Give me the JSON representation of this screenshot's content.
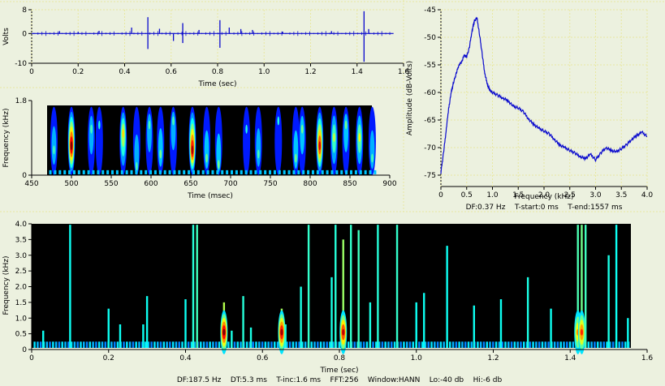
{
  "panels": {
    "waveform": {
      "ylabel": "Volts",
      "xlabel": "Time (sec)",
      "ytick_labels": [
        "8",
        "0",
        "-10"
      ],
      "xtick_labels": [
        "0",
        "0.2",
        "0.4",
        "0.6",
        "0.8",
        "1.0",
        "1.2",
        "1.4",
        "1.6"
      ]
    },
    "zoom_spectrogram": {
      "ylabel": "Frequency (kHz)",
      "xlabel": "Time (msec)",
      "ytick_labels": [
        "1.8",
        "0"
      ],
      "xtick_labels": [
        "450",
        "500",
        "550",
        "600",
        "650",
        "700",
        "750",
        "800",
        "850",
        "900"
      ]
    },
    "spectrum": {
      "ylabel": "Amplitude (dB-Volts)",
      "xlabel": "Frequency (kHz)",
      "ytick_labels": [
        "-45",
        "-50",
        "-55",
        "-60",
        "-65",
        "-70",
        "-75"
      ],
      "xtick_labels": [
        "0",
        "0.5",
        "1.0",
        "1.5",
        "2.0",
        "2.5",
        "3.0",
        "3.5",
        "4.0"
      ],
      "footer": "DF:0.37 Hz    T-start:0 ms    T-end:1557 ms"
    },
    "spectrogram": {
      "ylabel": "Frequency (kHz)",
      "xlabel": "Time (sec)",
      "ytick_labels": [
        "4.0",
        "3.5",
        "3.0",
        "2.5",
        "2.0",
        "1.5",
        "1.0",
        "0.5",
        "0"
      ],
      "xtick_labels": [
        "0",
        "0.2",
        "0.4",
        "0.6",
        "0.8",
        "1.0",
        "1.2",
        "1.4",
        "1.6"
      ],
      "footer": "DF:187.5 Hz    DT:5.3 ms    T-inc:1.6 ms    FFT:256    Window:HANN    Lo:-40 db    Hi:-6 db"
    }
  },
  "colors": {
    "background": "#ECF1DF",
    "trace": "#0A0ACD",
    "spectrogram_bg": "#000000",
    "separator": "#E8E8A0"
  },
  "chart_data": [
    {
      "type": "line",
      "title": "",
      "xlabel": "Time (sec)",
      "ylabel": "Volts",
      "xlim": [
        0,
        1.6
      ],
      "ylim": [
        -10,
        8
      ],
      "baseline": 0,
      "transients": [
        {
          "x": 0.12,
          "y": 0.8
        },
        {
          "x": 0.2,
          "y": 0.6
        },
        {
          "x": 0.29,
          "y": 0.9
        },
        {
          "x": 0.43,
          "y": 2.0
        },
        {
          "x": 0.5,
          "y": 5.5
        },
        {
          "x": 0.5,
          "y": -5.2
        },
        {
          "x": 0.55,
          "y": 1.6
        },
        {
          "x": 0.61,
          "y": -2.5
        },
        {
          "x": 0.65,
          "y": 3.5
        },
        {
          "x": 0.65,
          "y": -3.2
        },
        {
          "x": 0.72,
          "y": 1.2
        },
        {
          "x": 0.81,
          "y": 4.5
        },
        {
          "x": 0.81,
          "y": -4.8
        },
        {
          "x": 0.85,
          "y": 2.0
        },
        {
          "x": 0.9,
          "y": 1.5
        },
        {
          "x": 0.95,
          "y": 1.2
        },
        {
          "x": 1.08,
          "y": 0.6
        },
        {
          "x": 1.29,
          "y": 0.8
        },
        {
          "x": 1.43,
          "y": 7.5
        },
        {
          "x": 1.43,
          "y": -9.5
        },
        {
          "x": 1.45,
          "y": 1.5
        }
      ]
    },
    {
      "type": "heatmap",
      "title": "",
      "xlabel": "Time (msec)",
      "ylabel": "Frequency (kHz)",
      "xlim": [
        450,
        900
      ],
      "ylim": [
        0,
        1.8
      ],
      "data_range_ms": [
        470,
        885
      ],
      "events": [
        {
          "t": 478,
          "fpeak": 0.6,
          "intensity": 0.35
        },
        {
          "t": 500,
          "fpeak": 0.7,
          "intensity": 1.0
        },
        {
          "t": 525,
          "fpeak": 1.1,
          "intensity": 0.35
        },
        {
          "t": 535,
          "fpeak": 1.2,
          "intensity": 0.3
        },
        {
          "t": 565,
          "fpeak": 1.0,
          "intensity": 0.6
        },
        {
          "t": 582,
          "fpeak": 0.2,
          "intensity": 0.35
        },
        {
          "t": 598,
          "fpeak": 1.2,
          "intensity": 0.35
        },
        {
          "t": 612,
          "fpeak": 0.5,
          "intensity": 0.4
        },
        {
          "t": 628,
          "fpeak": 1.3,
          "intensity": 0.35
        },
        {
          "t": 652,
          "fpeak": 0.6,
          "intensity": 0.95
        },
        {
          "t": 670,
          "fpeak": 0.4,
          "intensity": 0.4
        },
        {
          "t": 685,
          "fpeak": 0.25,
          "intensity": 0.4
        },
        {
          "t": 720,
          "fpeak": 1.1,
          "intensity": 0.3
        },
        {
          "t": 735,
          "fpeak": 0.5,
          "intensity": 0.35
        },
        {
          "t": 760,
          "fpeak": 1.3,
          "intensity": 0.3
        },
        {
          "t": 782,
          "fpeak": 0.4,
          "intensity": 0.4
        },
        {
          "t": 790,
          "fpeak": 1.1,
          "intensity": 0.4
        },
        {
          "t": 812,
          "fpeak": 0.7,
          "intensity": 0.9
        },
        {
          "t": 830,
          "fpeak": 0.9,
          "intensity": 0.5
        },
        {
          "t": 845,
          "fpeak": 1.2,
          "intensity": 0.4
        },
        {
          "t": 862,
          "fpeak": 0.9,
          "intensity": 0.55
        },
        {
          "t": 878,
          "fpeak": 0.4,
          "intensity": 0.35
        }
      ]
    },
    {
      "type": "line",
      "title": "",
      "xlabel": "Frequency (kHz)",
      "ylabel": "Amplitude (dB-Volts)",
      "xlim": [
        0,
        4.0
      ],
      "ylim": [
        -75,
        -45
      ],
      "x": [
        0,
        0.05,
        0.1,
        0.15,
        0.2,
        0.25,
        0.3,
        0.35,
        0.4,
        0.45,
        0.5,
        0.55,
        0.6,
        0.65,
        0.7,
        0.75,
        0.8,
        0.85,
        0.9,
        0.95,
        1.0,
        1.1,
        1.2,
        1.3,
        1.4,
        1.5,
        1.6,
        1.7,
        1.8,
        1.9,
        2.0,
        2.1,
        2.2,
        2.3,
        2.4,
        2.5,
        2.6,
        2.7,
        2.8,
        2.9,
        3.0,
        3.1,
        3.2,
        3.3,
        3.4,
        3.5,
        3.6,
        3.7,
        3.8,
        3.9,
        4.0
      ],
      "y": [
        -74.5,
        -71,
        -67,
        -63,
        -60,
        -58,
        -56.5,
        -55,
        -54.5,
        -53.3,
        -53.5,
        -52,
        -49,
        -47,
        -46.5,
        -49.5,
        -53,
        -56.5,
        -58.5,
        -59.6,
        -60,
        -60.5,
        -61,
        -61.5,
        -62.5,
        -62.8,
        -63.5,
        -64.8,
        -65.8,
        -66.5,
        -67,
        -67.5,
        -68.5,
        -69.5,
        -70,
        -70.5,
        -71,
        -71.6,
        -72,
        -71.2,
        -72.2,
        -71,
        -70,
        -70.5,
        -70.8,
        -70.2,
        -69.5,
        -68.5,
        -67.8,
        -67.2,
        -68
      ]
    },
    {
      "type": "heatmap",
      "title": "",
      "xlabel": "Time (sec)",
      "ylabel": "Frequency (kHz)",
      "xlim": [
        0,
        1.6
      ],
      "ylim": [
        0,
        4.0
      ],
      "data_range_s": [
        0,
        1.557
      ],
      "events": [
        {
          "t": 0.03,
          "fmax": 0.6,
          "intensity": 0.35
        },
        {
          "t": 0.1,
          "fmax": 4.0,
          "intensity": 0.35
        },
        {
          "t": 0.2,
          "fmax": 1.3,
          "intensity": 0.35
        },
        {
          "t": 0.23,
          "fmax": 0.8,
          "intensity": 0.35
        },
        {
          "t": 0.29,
          "fmax": 0.8,
          "intensity": 0.35
        },
        {
          "t": 0.3,
          "fmax": 1.7,
          "intensity": 0.35
        },
        {
          "t": 0.4,
          "fmax": 1.6,
          "intensity": 0.35
        },
        {
          "t": 0.42,
          "fmax": 4.0,
          "intensity": 0.45
        },
        {
          "t": 0.43,
          "fmax": 4.0,
          "intensity": 0.55
        },
        {
          "t": 0.5,
          "fmax": 1.5,
          "intensity": 1.0
        },
        {
          "t": 0.52,
          "fmax": 0.6,
          "intensity": 0.4
        },
        {
          "t": 0.55,
          "fmax": 1.7,
          "intensity": 0.45
        },
        {
          "t": 0.57,
          "fmax": 0.7,
          "intensity": 0.4
        },
        {
          "t": 0.65,
          "fmax": 1.3,
          "intensity": 0.95
        },
        {
          "t": 0.66,
          "fmax": 0.8,
          "intensity": 0.4
        },
        {
          "t": 0.7,
          "fmax": 2.0,
          "intensity": 0.4
        },
        {
          "t": 0.72,
          "fmax": 4.0,
          "intensity": 0.5
        },
        {
          "t": 0.78,
          "fmax": 2.3,
          "intensity": 0.4
        },
        {
          "t": 0.79,
          "fmax": 4.0,
          "intensity": 0.45
        },
        {
          "t": 0.81,
          "fmax": 3.5,
          "intensity": 0.9
        },
        {
          "t": 0.83,
          "fmax": 4.0,
          "intensity": 0.5
        },
        {
          "t": 0.85,
          "fmax": 3.8,
          "intensity": 0.55
        },
        {
          "t": 0.88,
          "fmax": 1.5,
          "intensity": 0.4
        },
        {
          "t": 0.9,
          "fmax": 4.0,
          "intensity": 0.45
        },
        {
          "t": 0.95,
          "fmax": 4.0,
          "intensity": 0.5
        },
        {
          "t": 1.0,
          "fmax": 1.5,
          "intensity": 0.35
        },
        {
          "t": 1.02,
          "fmax": 1.8,
          "intensity": 0.35
        },
        {
          "t": 1.08,
          "fmax": 3.3,
          "intensity": 0.35
        },
        {
          "t": 1.15,
          "fmax": 1.4,
          "intensity": 0.35
        },
        {
          "t": 1.22,
          "fmax": 1.6,
          "intensity": 0.35
        },
        {
          "t": 1.29,
          "fmax": 2.3,
          "intensity": 0.4
        },
        {
          "t": 1.35,
          "fmax": 1.3,
          "intensity": 0.35
        },
        {
          "t": 1.42,
          "fmax": 4.0,
          "intensity": 0.6
        },
        {
          "t": 1.43,
          "fmax": 4.0,
          "intensity": 0.75
        },
        {
          "t": 1.44,
          "fmax": 4.0,
          "intensity": 0.55
        },
        {
          "t": 1.5,
          "fmax": 3.0,
          "intensity": 0.4
        },
        {
          "t": 1.52,
          "fmax": 4.0,
          "intensity": 0.35
        },
        {
          "t": 1.55,
          "fmax": 1.0,
          "intensity": 0.35
        }
      ]
    }
  ]
}
